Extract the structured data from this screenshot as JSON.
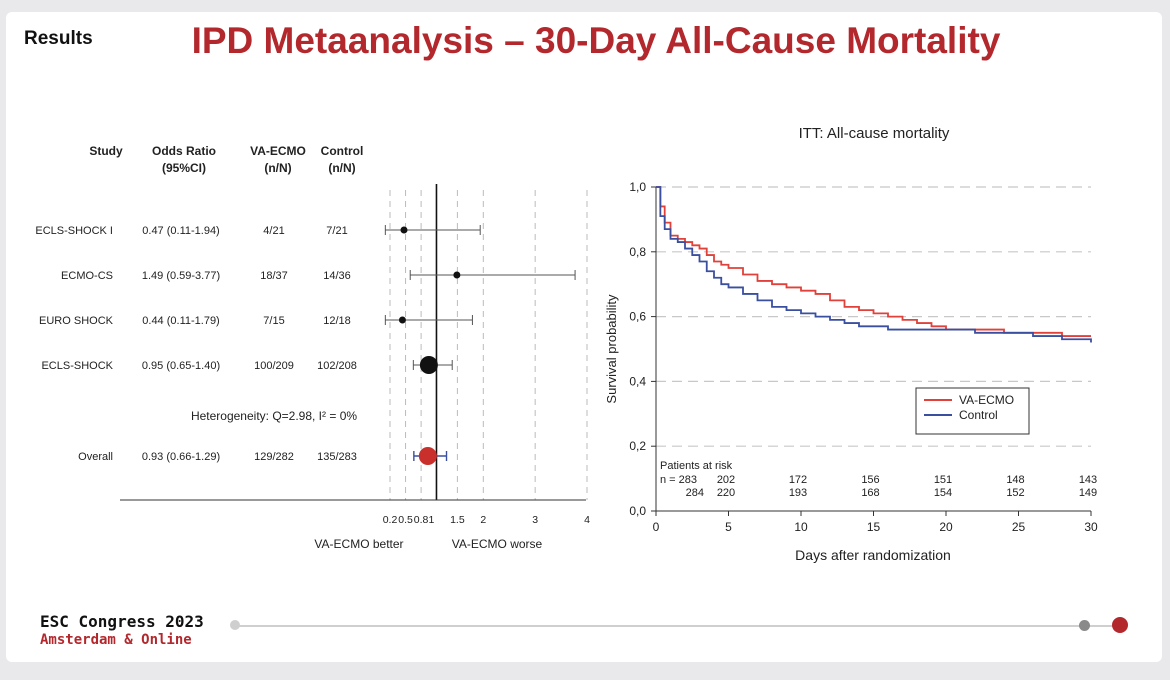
{
  "slide": {
    "section_label": "Results",
    "title": "IPD Metaanalysis – 30-Day All-Cause Mortality",
    "footer_title": "ESC Congress 2023",
    "footer_subtitle": "Amsterdam & Online",
    "colors": {
      "title": "#b3282d",
      "accent": "#b3282d"
    }
  },
  "chart_data": [
    {
      "type": "forest",
      "columns": [
        "Study",
        "Odds Ratio",
        "(95%CI)",
        "VA-ECMO",
        "(n/N)",
        "Control",
        "(n/N)"
      ],
      "studies": [
        {
          "name": "ECLS-SHOCK I",
          "or": 0.47,
          "lo": 0.11,
          "hi": 1.94,
          "or_label": "0.47 (0.11-1.94)",
          "va": "4/21",
          "control": "7/21",
          "marker_size": "small"
        },
        {
          "name": "ECMO-CS",
          "or": 1.49,
          "lo": 0.59,
          "hi": 3.77,
          "or_label": "1.49 (0.59-3.77)",
          "va": "18/37",
          "control": "14/36",
          "marker_size": "small"
        },
        {
          "name": "EURO SHOCK",
          "or": 0.44,
          "lo": 0.11,
          "hi": 1.79,
          "or_label": "0.44 (0.11-1.79)",
          "va": "7/15",
          "control": "12/18",
          "marker_size": "small"
        },
        {
          "name": "ECLS-SHOCK",
          "or": 0.95,
          "lo": 0.65,
          "hi": 1.4,
          "or_label": "0.95 (0.65-1.40)",
          "va": "100/209",
          "control": "102/208",
          "marker_size": "large"
        }
      ],
      "heterogeneity": "Heterogeneity: Q=2.98, I² = 0%",
      "overall": {
        "name": "Overall",
        "or": 0.93,
        "lo": 0.66,
        "hi": 1.29,
        "or_label": "0.93 (0.66-1.29)",
        "va": "129/282",
        "control": "135/283"
      },
      "x_ticks": [
        0.2,
        0.5,
        0.8,
        1,
        1.5,
        2,
        3,
        4
      ],
      "x_tick_labels": [
        "0.2",
        "0.5",
        "0.8",
        "1",
        "1.5",
        "2",
        "3",
        "4"
      ],
      "x_label_left": "VA-ECMO better",
      "x_label_right": "VA-ECMO worse",
      "overall_color": "#c9302c"
    },
    {
      "type": "line",
      "title": "ITT: All-cause mortality",
      "xlabel": "Days after randomization",
      "ylabel": "Survival probability",
      "xlim": [
        0,
        30
      ],
      "ylim": [
        0,
        1
      ],
      "x_ticks": [
        0,
        5,
        10,
        15,
        20,
        25,
        30
      ],
      "y_ticks": [
        "0,0",
        "0,2",
        "0,4",
        "0,6",
        "0,8",
        "1,0"
      ],
      "grid": "dashed horizontal",
      "legend": "lower-center",
      "series": [
        {
          "name": "VA-ECMO",
          "color": "#e0413a",
          "x": [
            0,
            0.3,
            0.6,
            1,
            1.5,
            2,
            2.5,
            3,
            3.5,
            4,
            4.5,
            5,
            6,
            7,
            8,
            9,
            10,
            11,
            12,
            13,
            14,
            15,
            16,
            17,
            18,
            19,
            20,
            22,
            24,
            26,
            28,
            30
          ],
          "y": [
            1.0,
            0.94,
            0.89,
            0.85,
            0.84,
            0.83,
            0.82,
            0.81,
            0.79,
            0.77,
            0.76,
            0.75,
            0.73,
            0.71,
            0.7,
            0.69,
            0.68,
            0.67,
            0.65,
            0.63,
            0.62,
            0.61,
            0.6,
            0.59,
            0.58,
            0.57,
            0.56,
            0.56,
            0.55,
            0.55,
            0.54,
            0.54
          ]
        },
        {
          "name": "Control",
          "color": "#3a4fa0",
          "x": [
            0,
            0.3,
            0.6,
            1,
            1.5,
            2,
            2.5,
            3,
            3.5,
            4,
            4.5,
            5,
            6,
            7,
            8,
            9,
            10,
            11,
            12,
            13,
            14,
            15,
            16,
            17,
            18,
            19,
            20,
            22,
            24,
            26,
            28,
            30
          ],
          "y": [
            1.0,
            0.91,
            0.87,
            0.84,
            0.83,
            0.81,
            0.79,
            0.77,
            0.74,
            0.72,
            0.7,
            0.69,
            0.67,
            0.65,
            0.63,
            0.62,
            0.61,
            0.6,
            0.59,
            0.58,
            0.57,
            0.57,
            0.56,
            0.56,
            0.56,
            0.56,
            0.56,
            0.55,
            0.55,
            0.54,
            0.53,
            0.52
          ]
        }
      ],
      "risk_table": {
        "label": "Patients at risk",
        "rows": [
          {
            "prefix": "n = 283",
            "values": [
              "202",
              "172",
              "156",
              "151",
              "148",
              "143"
            ]
          },
          {
            "prefix": "284",
            "values": [
              "220",
              "193",
              "168",
              "154",
              "152",
              "149"
            ]
          }
        ],
        "x": [
          2.5,
          10,
          15,
          20,
          25,
          30
        ]
      }
    }
  ]
}
